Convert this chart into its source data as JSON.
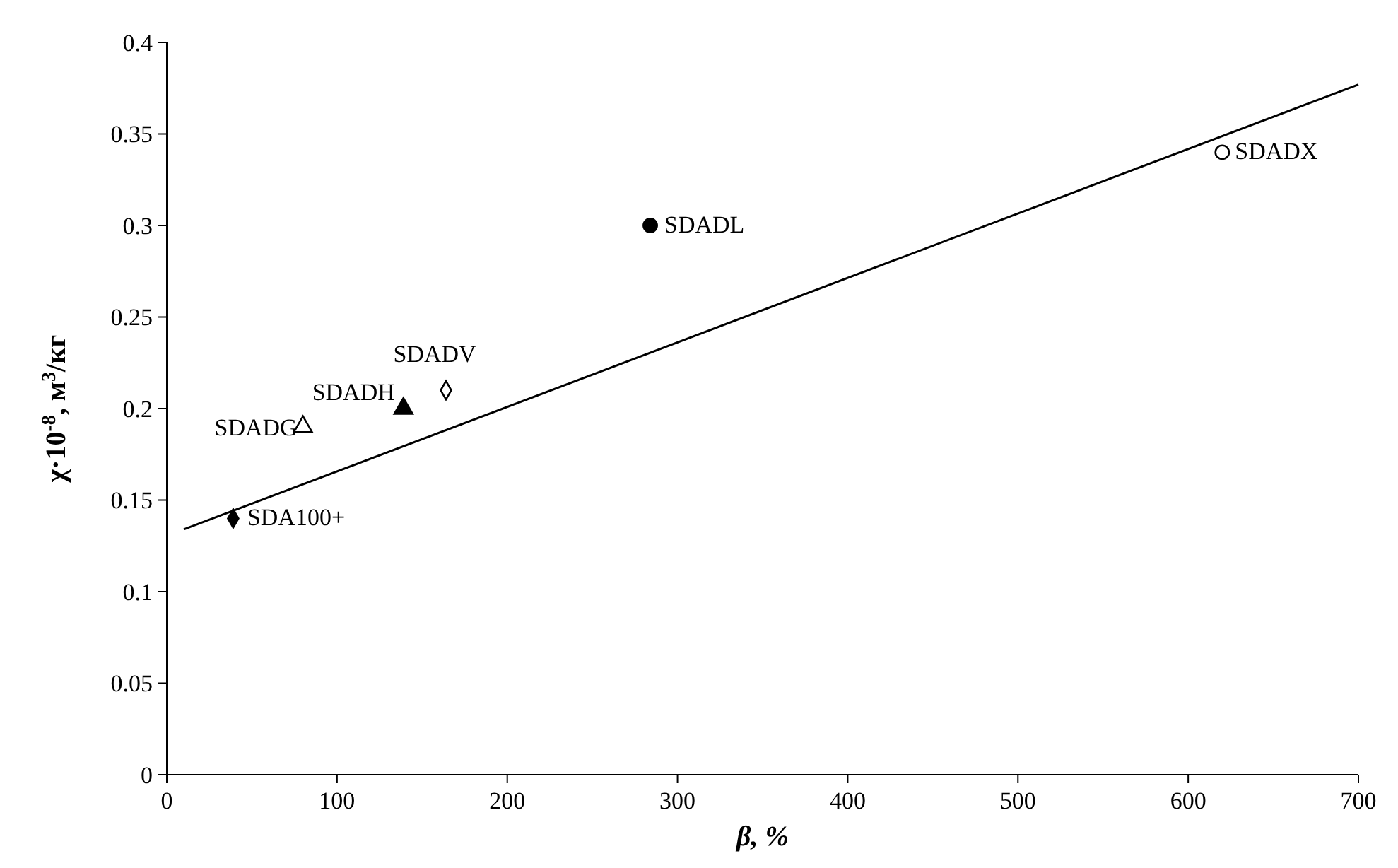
{
  "chart_data": {
    "type": "scatter",
    "xlabel": "β, %",
    "ylabel": "χ·10$^{-8}$, м$^{3}$/кг",
    "xlim": [
      0,
      700
    ],
    "xticks": [
      0,
      100,
      200,
      300,
      400,
      500,
      600,
      700
    ],
    "ylim": [
      0,
      0.4
    ],
    "yticks": [
      0,
      0.05,
      0.1,
      0.15,
      0.2,
      0.25,
      0.3,
      0.35,
      0.4
    ],
    "grid": false,
    "series": [
      {
        "name": "SDA100+",
        "marker": "diamond",
        "color": "#000000",
        "x": [
          39
        ],
        "values": [
          0.14
        ]
      },
      {
        "name": "SDADG",
        "marker": "triangle",
        "color": "#ffffff",
        "x": [
          80
        ],
        "values": [
          0.19
        ]
      },
      {
        "name": "SDADH",
        "marker": "triangle",
        "color": "#000000",
        "x": [
          139
        ],
        "values": [
          0.2
        ]
      },
      {
        "name": "SDADV",
        "marker": "diamond",
        "color": "#ffffff",
        "x": [
          164
        ],
        "values": [
          0.21
        ]
      },
      {
        "name": "SDADL",
        "marker": "circle",
        "color": "#000000",
        "x": [
          284
        ],
        "values": [
          0.3
        ]
      },
      {
        "name": "SDADX",
        "marker": "circle",
        "color": "#ffffff",
        "x": [
          620
        ],
        "values": [
          0.34
        ]
      },
      {
        "type": "line",
        "marker": "none",
        "line_style": "solid",
        "color": "#000000",
        "x": [
          10,
          700
        ],
        "values": [
          0.134,
          0.377
        ]
      }
    ]
  }
}
